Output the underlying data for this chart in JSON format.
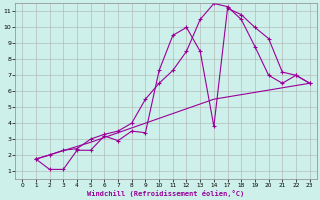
{
  "xlabel": "Windchill (Refroidissement éolien,°C)",
  "background_color": "#cef0ea",
  "grid_color": "#b0b0b0",
  "line_color": "#990099",
  "x_ticks": [
    0,
    1,
    2,
    3,
    4,
    5,
    6,
    7,
    8,
    9,
    10,
    11,
    12,
    13,
    14,
    17,
    18,
    19,
    20,
    21,
    22,
    23
  ],
  "x_positions": [
    0,
    1,
    2,
    3,
    4,
    5,
    6,
    7,
    8,
    9,
    10,
    11,
    12,
    13,
    14,
    15,
    16,
    17,
    18,
    19,
    20,
    21
  ],
  "xlim": [
    -0.5,
    21.5
  ],
  "ylim": [
    0.5,
    11.5
  ],
  "y_ticks": [
    1,
    2,
    3,
    4,
    5,
    6,
    7,
    8,
    9,
    10,
    11
  ],
  "line1_x": [
    1,
    2,
    3,
    4,
    5,
    6,
    7,
    8,
    9,
    10,
    11,
    12,
    13,
    14,
    15,
    16,
    17,
    18,
    19,
    20,
    21
  ],
  "line1_y": [
    1.75,
    1.1,
    1.1,
    2.3,
    2.3,
    3.2,
    2.9,
    3.5,
    3.4,
    7.3,
    9.5,
    10.0,
    8.5,
    3.8,
    11.2,
    10.8,
    10.0,
    9.3,
    7.2,
    7.0,
    6.5
  ],
  "line2_x": [
    1,
    2,
    3,
    4,
    5,
    6,
    7,
    8,
    9,
    10,
    11,
    12,
    13,
    14,
    15,
    16,
    17,
    18,
    19,
    20,
    21
  ],
  "line2_y": [
    1.75,
    2.0,
    2.3,
    2.4,
    3.0,
    3.3,
    3.5,
    4.0,
    5.5,
    6.5,
    7.3,
    8.5,
    10.5,
    11.5,
    11.3,
    10.5,
    8.8,
    7.0,
    6.5,
    7.0,
    6.5
  ],
  "line3_x": [
    1,
    5,
    14,
    21
  ],
  "line3_y": [
    1.75,
    2.8,
    5.5,
    6.5
  ]
}
